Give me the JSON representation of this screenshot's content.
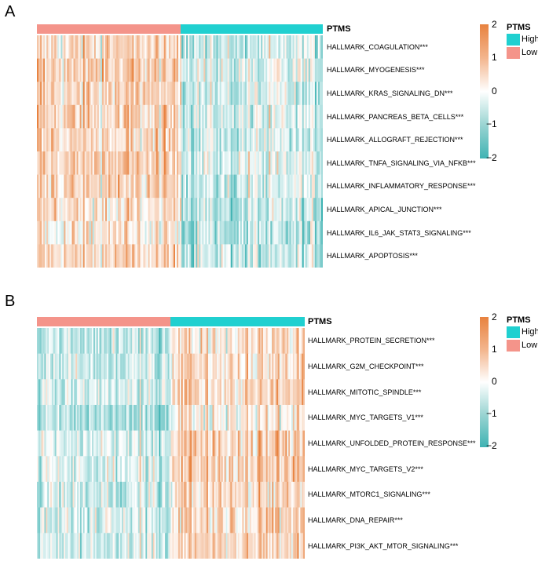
{
  "panels": [
    {
      "label": "A",
      "annotation_title": "PTMS",
      "rows": [
        "HALLMARK_COAGULATION***",
        "HALLMARK_MYOGENESIS***",
        "HALLMARK_KRAS_SIGNALING_DN***",
        "HALLMARK_PANCREAS_BETA_CELLS***",
        "HALLMARK_ALLOGRAFT_REJECTION***",
        "HALLMARK_TNFA_SIGNALING_VIA_NFKB***",
        "HALLMARK_INFLAMMATORY_RESPONSE***",
        "HALLMARK_APICAL_JUNCTION***",
        "HALLMARK_IL6_JAK_STAT3_SIGNALING***",
        "HALLMARK_APOPTOSIS***"
      ],
      "legend": {
        "title": "PTMS",
        "items": [
          "High",
          "Low"
        ]
      },
      "colorbar_ticks": [
        "2",
        "1",
        "0",
        "−1",
        "−2"
      ]
    },
    {
      "label": "B",
      "annotation_title": "PTMS",
      "rows": [
        "HALLMARK_PROTEIN_SECRETION***",
        "HALLMARK_G2M_CHECKPOINT***",
        "HALLMARK_MITOTIC_SPINDLE***",
        "HALLMARK_MYC_TARGETS_V1***",
        "HALLMARK_UNFOLDED_PROTEIN_RESPONSE***",
        "HALLMARK_MYC_TARGETS_V2***",
        "HALLMARK_MTORC1_SIGNALING***",
        "HALLMARK_DNA_REPAIR***",
        "HALLMARK_PI3K_AKT_MTOR_SIGNALING***"
      ],
      "legend": {
        "title": "PTMS",
        "items": [
          "High",
          "Low"
        ]
      },
      "colorbar_ticks": [
        "2",
        "1",
        "0",
        "−1",
        "−2"
      ]
    }
  ],
  "colors": {
    "high": "#20d0d0",
    "low": "#f4948a",
    "scale_max": "#e8823f",
    "scale_mid": "#ffffff",
    "scale_min": "#3fb3b3"
  },
  "chart_data": [
    {
      "type": "heatmap",
      "title": "",
      "groups": [
        "Low",
        "High"
      ],
      "rows": [
        "HALLMARK_COAGULATION***",
        "HALLMARK_MYOGENESIS***",
        "HALLMARK_KRAS_SIGNALING_DN***",
        "HALLMARK_PANCREAS_BETA_CELLS***",
        "HALLMARK_ALLOGRAFT_REJECTION***",
        "HALLMARK_TNFA_SIGNALING_VIA_NFKB***",
        "HALLMARK_INFLAMMATORY_RESPONSE***",
        "HALLMARK_APICAL_JUNCTION***",
        "HALLMARK_IL6_JAK_STAT3_SIGNALING***",
        "HALLMARK_APOPTOSIS***"
      ],
      "group_mean_scores": {
        "Low": 0.6,
        "High": -0.5
      },
      "color_range": [
        -2,
        2
      ]
    },
    {
      "type": "heatmap",
      "title": "",
      "groups": [
        "Low",
        "High"
      ],
      "rows": [
        "HALLMARK_PROTEIN_SECRETION***",
        "HALLMARK_G2M_CHECKPOINT***",
        "HALLMARK_MITOTIC_SPINDLE***",
        "HALLMARK_MYC_TARGETS_V1***",
        "HALLMARK_UNFOLDED_PROTEIN_RESPONSE***",
        "HALLMARK_MYC_TARGETS_V2***",
        "HALLMARK_MTORC1_SIGNALING***",
        "HALLMARK_DNA_REPAIR***",
        "HALLMARK_PI3K_AKT_MTOR_SIGNALING***"
      ],
      "group_mean_scores": {
        "Low": -0.6,
        "High": 0.6
      },
      "color_range": [
        -2,
        2
      ]
    }
  ]
}
